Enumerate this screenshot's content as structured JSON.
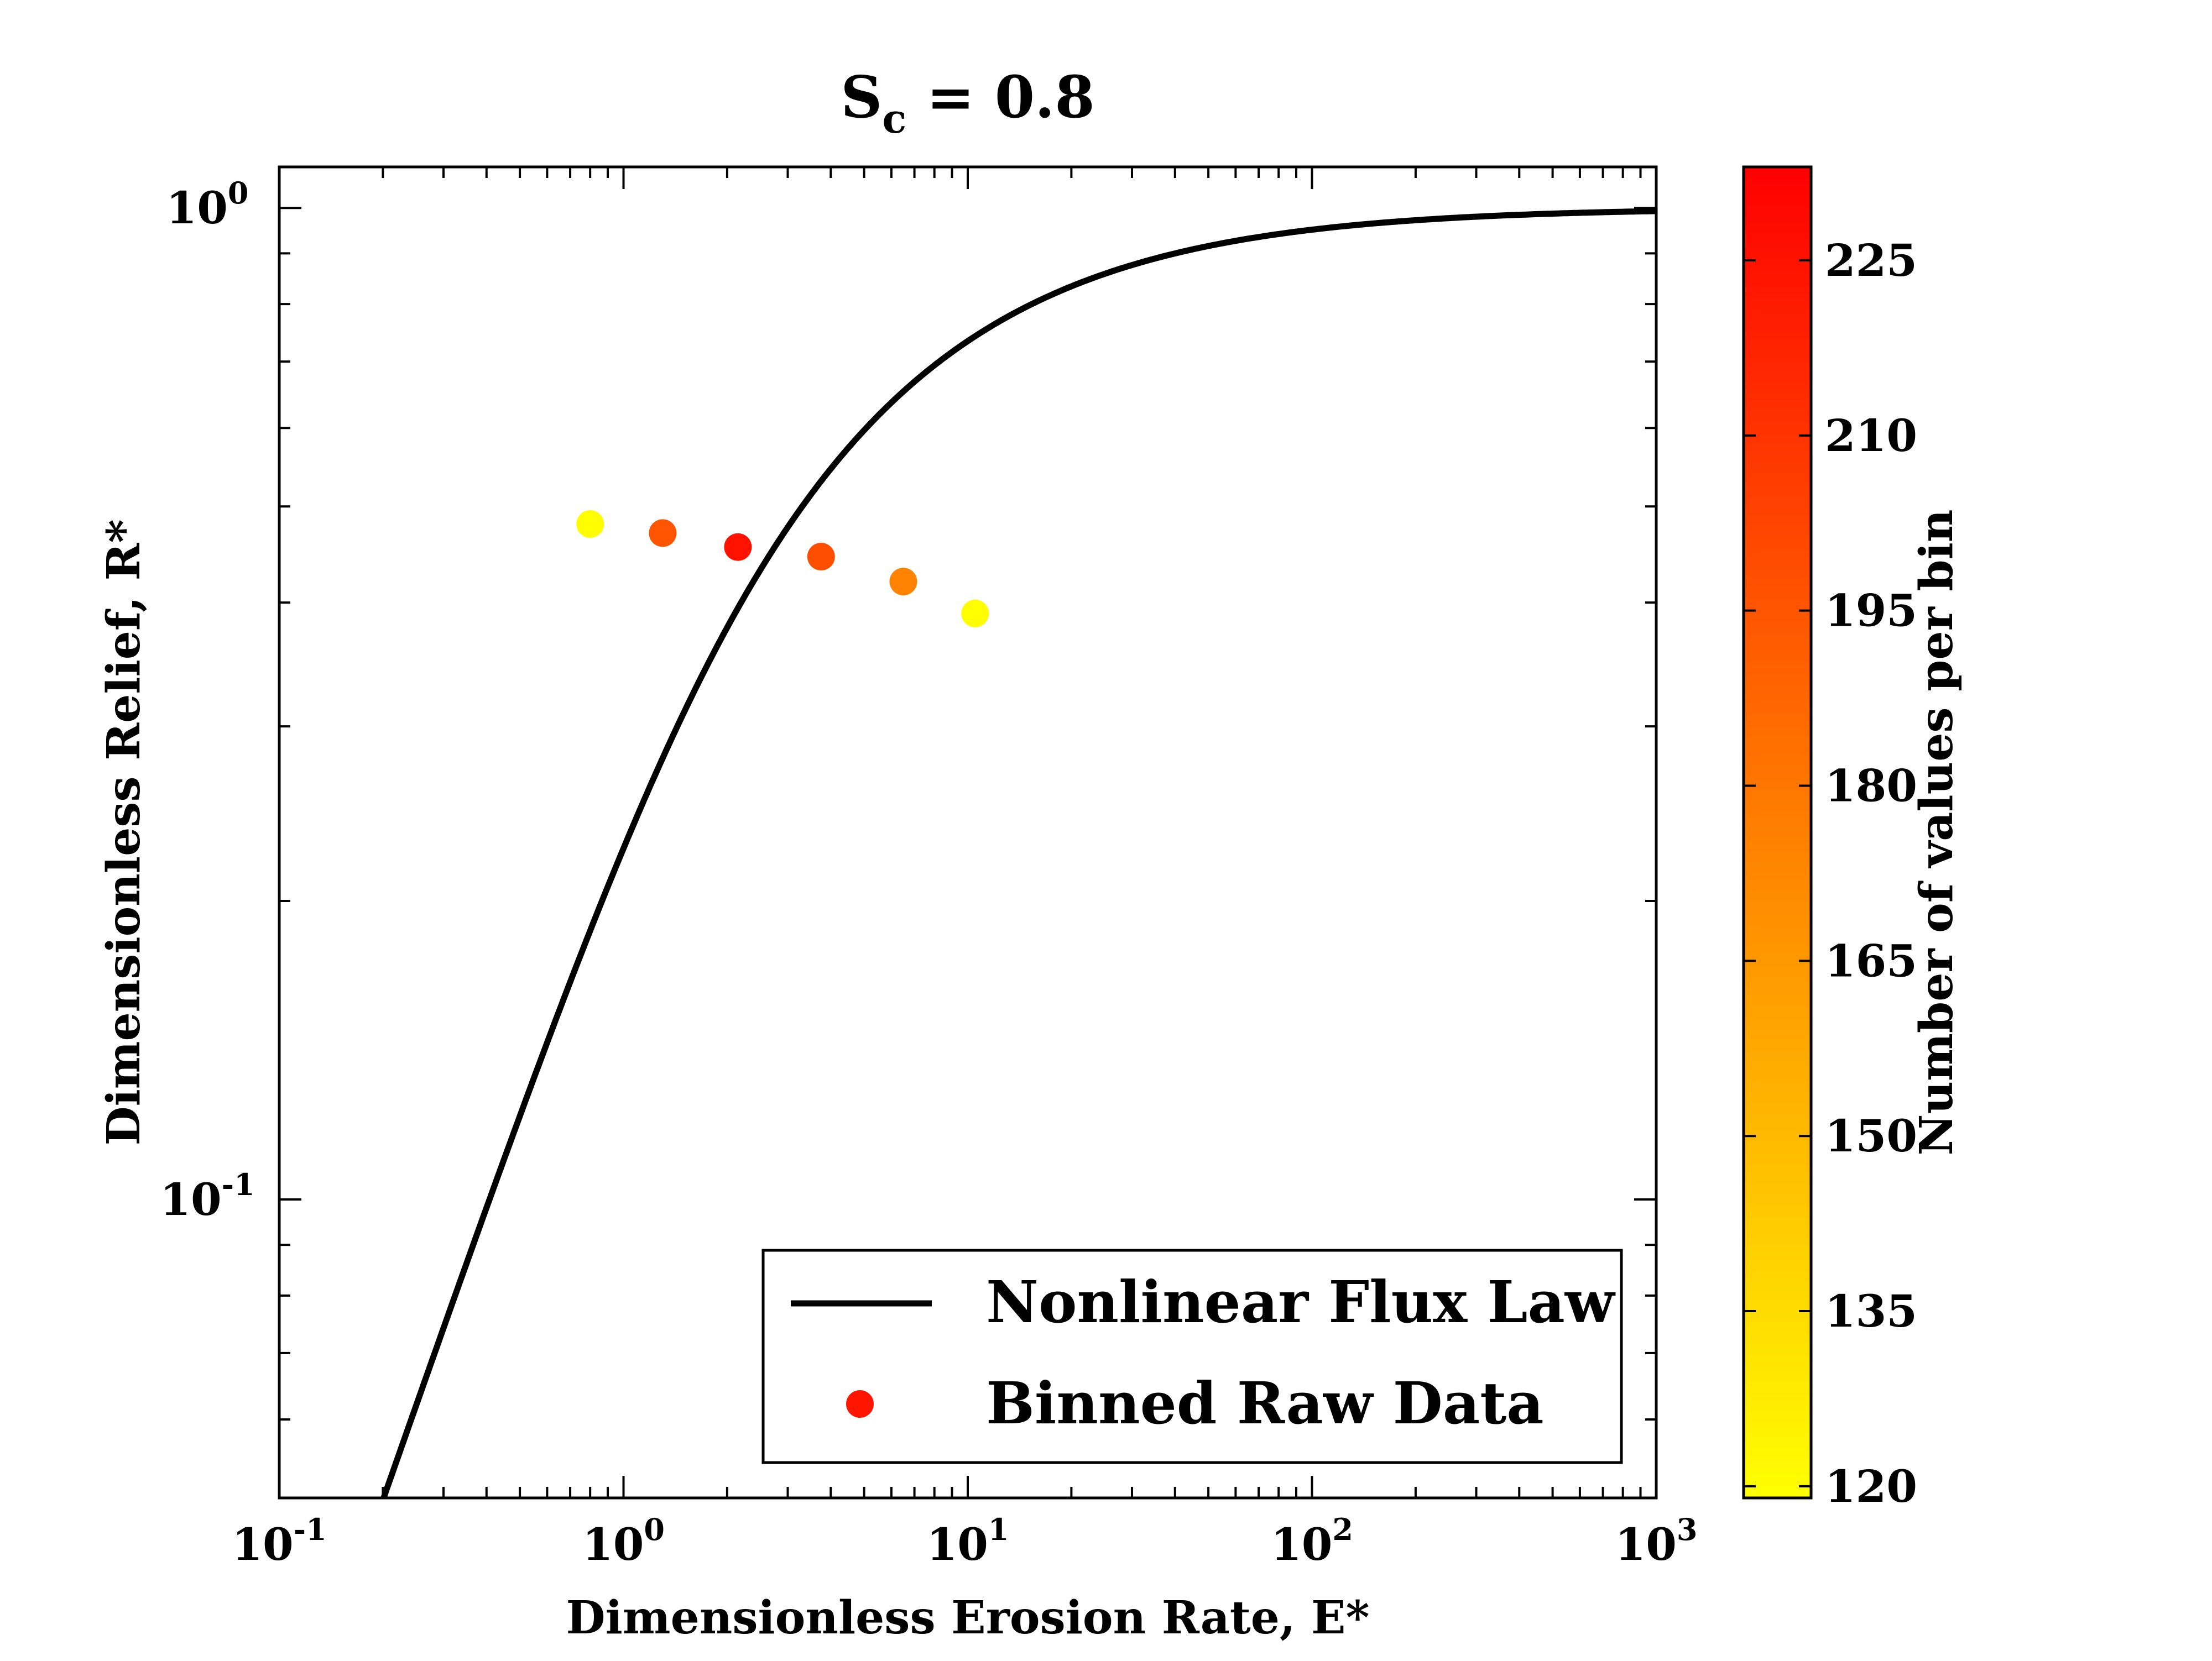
{
  "chart_data": {
    "type": "scatter",
    "title": {
      "base": "S",
      "subscript": "c",
      "suffix": " = 0.8"
    },
    "xlabel": "Dimensionless Erosion Rate, E*",
    "ylabel": "Dimensionless Relief, R*",
    "xscale": "log",
    "yscale": "log",
    "xlim": [
      0.1,
      1000
    ],
    "ylim": [
      0.05,
      1.1
    ],
    "grid": false,
    "x_ticks": [
      {
        "value": 0.1,
        "base": "10",
        "exp": "-1"
      },
      {
        "value": 1,
        "base": "10",
        "exp": "0"
      },
      {
        "value": 10,
        "base": "10",
        "exp": "1"
      },
      {
        "value": 100,
        "base": "10",
        "exp": "2"
      },
      {
        "value": 1000,
        "base": "10",
        "exp": "3"
      }
    ],
    "y_ticks": [
      {
        "value": 0.1,
        "base": "10",
        "exp": "-1"
      },
      {
        "value": 1,
        "base": "10",
        "exp": "0"
      }
    ],
    "series": [
      {
        "name": "Nonlinear Flux Law",
        "type": "line",
        "color": "#000000",
        "model": "R* = (sqrt(1+E*^2) - ln((1+sqrt(1+E*^2))/2) - 1) / E*",
        "x_range": [
          0.2,
          1000
        ]
      },
      {
        "name": "Binned Raw Data",
        "type": "scatter",
        "legend_color": "#ff1500",
        "points": [
          {
            "x": 0.8,
            "y": 0.48,
            "count": 120
          },
          {
            "x": 1.3,
            "y": 0.47,
            "count": 195
          },
          {
            "x": 2.15,
            "y": 0.455,
            "count": 225
          },
          {
            "x": 3.75,
            "y": 0.445,
            "count": 198
          },
          {
            "x": 6.5,
            "y": 0.42,
            "count": 175
          },
          {
            "x": 10.5,
            "y": 0.39,
            "count": 120
          }
        ]
      }
    ],
    "legend": {
      "placement": "lower-right",
      "entries": [
        "Nonlinear Flux Law",
        "Binned Raw Data"
      ]
    },
    "colorbar": {
      "label": "Number of values per bin",
      "range": [
        119,
        233
      ],
      "colormap": "autumn_r",
      "color_low": "#ffff00",
      "color_high": "#ff0000",
      "ticks": [
        120,
        135,
        150,
        165,
        180,
        195,
        210,
        225
      ]
    }
  }
}
